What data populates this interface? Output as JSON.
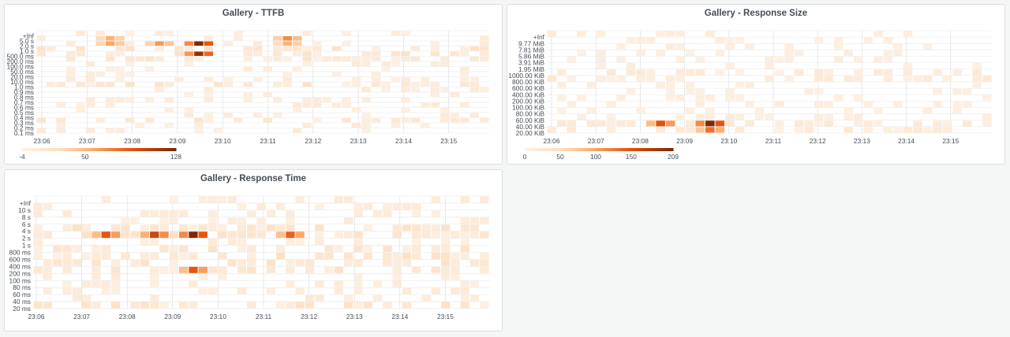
{
  "panels": [
    {
      "id": "ttfb",
      "title": "Gallery - TTFB",
      "chart_data": {
        "type": "heatmap",
        "title": "Gallery - TTFB",
        "x_ticks": [
          "23:06",
          "23:07",
          "23:08",
          "23:09",
          "23:10",
          "23:11",
          "23:12",
          "23:13",
          "23:14",
          "23:15"
        ],
        "y_buckets": [
          "0.1 ms",
          "0.2 ms",
          "0.3 ms",
          "0.4 ms",
          "0.5 ms",
          "0.6 ms",
          "0.7 ms",
          "0.8 ms",
          "0.9 ms",
          "1.0 ms",
          "10.0 ms",
          "20.0 ms",
          "50.0 ms",
          "100.0 ms",
          "200.0 ms",
          "500.0 ms",
          "1.0 s",
          "2.0 s",
          "5.0 s",
          "+Inf"
        ],
        "color_scale": {
          "min": -4,
          "max": 128,
          "ticks": [
            "-4",
            "50",
            "128"
          ],
          "low_color": "#fdf1e4",
          "high_color": "#7f2704"
        },
        "highlight_cells": [
          {
            "x": "23:07",
            "y": "5.0 s",
            "value": 55
          },
          {
            "x": "23:07",
            "y": "2.0 s",
            "value": 60
          },
          {
            "x": "23:08",
            "y": "2.0 s",
            "value": 65
          },
          {
            "x": "23:09",
            "y": "2.0 s",
            "value": 128
          },
          {
            "x": "23:09",
            "y": "500.0 ms",
            "value": 120
          },
          {
            "x": "23:11",
            "y": "5.0 s",
            "value": 70
          },
          {
            "x": "23:11",
            "y": "2.0 s",
            "value": 55
          }
        ]
      }
    },
    {
      "id": "response-size",
      "title": "Gallery - Response Size",
      "chart_data": {
        "type": "heatmap",
        "title": "Gallery - Response Size",
        "x_ticks": [
          "23:06",
          "23:07",
          "23:08",
          "23:09",
          "23:10",
          "23:11",
          "23:12",
          "23:13",
          "23:14",
          "23:15"
        ],
        "y_buckets": [
          "20.00 KiB",
          "40.00 KiB",
          "60.00 KiB",
          "80.00 KiB",
          "100.00 KiB",
          "200.00 KiB",
          "400.00 KiB",
          "600.00 KiB",
          "800.00 KiB",
          "1000.00 KiB",
          "1.95 MiB",
          "3.91 MiB",
          "5.86 MiB",
          "7.81 MiB",
          "9.77 MiB",
          "+Inf"
        ],
        "color_scale": {
          "min": 0,
          "max": 209,
          "ticks": [
            "0",
            "50",
            "100",
            "150",
            "209"
          ],
          "low_color": "#fdf1e4",
          "high_color": "#7f2704"
        },
        "highlight_cells": [
          {
            "x": "23:08",
            "y": "40.00 KiB",
            "value": 150
          },
          {
            "x": "23:09",
            "y": "40.00 KiB",
            "value": 209
          },
          {
            "x": "23:09",
            "y": "20.00 KiB",
            "value": 130
          }
        ]
      }
    },
    {
      "id": "response-time",
      "title": "Gallery - Response Time",
      "chart_data": {
        "type": "heatmap",
        "title": "Gallery - Response Time",
        "x_ticks": [
          "23:06",
          "23:07",
          "23:08",
          "23:09",
          "23:10",
          "23:11",
          "23:12",
          "23:13",
          "23:14",
          "23:15"
        ],
        "y_buckets": [
          "20 ms",
          "40 ms",
          "60 ms",
          "80 ms",
          "100 ms",
          "200 ms",
          "400 ms",
          "600 ms",
          "800 ms",
          "1 s",
          "2 s",
          "4 s",
          "6 s",
          "8 s",
          "10 s",
          "+Inf"
        ],
        "color_scale": {
          "low_color": "#fdf1e4",
          "high_color": "#7f2704"
        },
        "highlight_cells": [
          {
            "x": "23:07",
            "y": "2 s",
            "value": 90
          },
          {
            "x": "23:08",
            "y": "2 s",
            "value": 100
          },
          {
            "x": "23:09",
            "y": "2 s",
            "value": 128
          },
          {
            "x": "23:09",
            "y": "200 ms",
            "value": 90
          },
          {
            "x": "23:11",
            "y": "2 s",
            "value": 85
          }
        ]
      }
    }
  ]
}
